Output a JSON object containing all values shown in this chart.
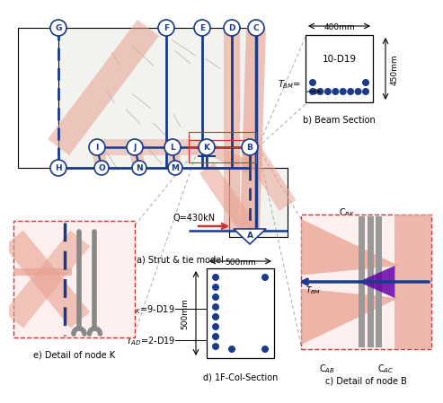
{
  "bg_color": "#ffffff",
  "salmon": "#e8a090",
  "blue": "#1a3a8a",
  "red_dashed": "#cc3333",
  "gray": "#888888",
  "purple": "#6600aa",
  "title_a": "a) Strut & tie model",
  "title_b": "b) Beam Section",
  "title_c": "c) Detail of node B",
  "title_d": "d) 1F-Col-Section",
  "title_e": "e) Detail of node K",
  "q_text": "Q=430kN",
  "beam_width": "400mm",
  "beam_height": "450mm",
  "beam_bars": "10-D19",
  "col_width": "500mm",
  "col_height": "500mm",
  "cbk": "C$_{BK}$",
  "cab": "C$_{AB}$",
  "cac": "C$_{AC}$",
  "tak": "T$_{AK}$=9-D19",
  "tad": "T$_{AD}$=2-D19"
}
